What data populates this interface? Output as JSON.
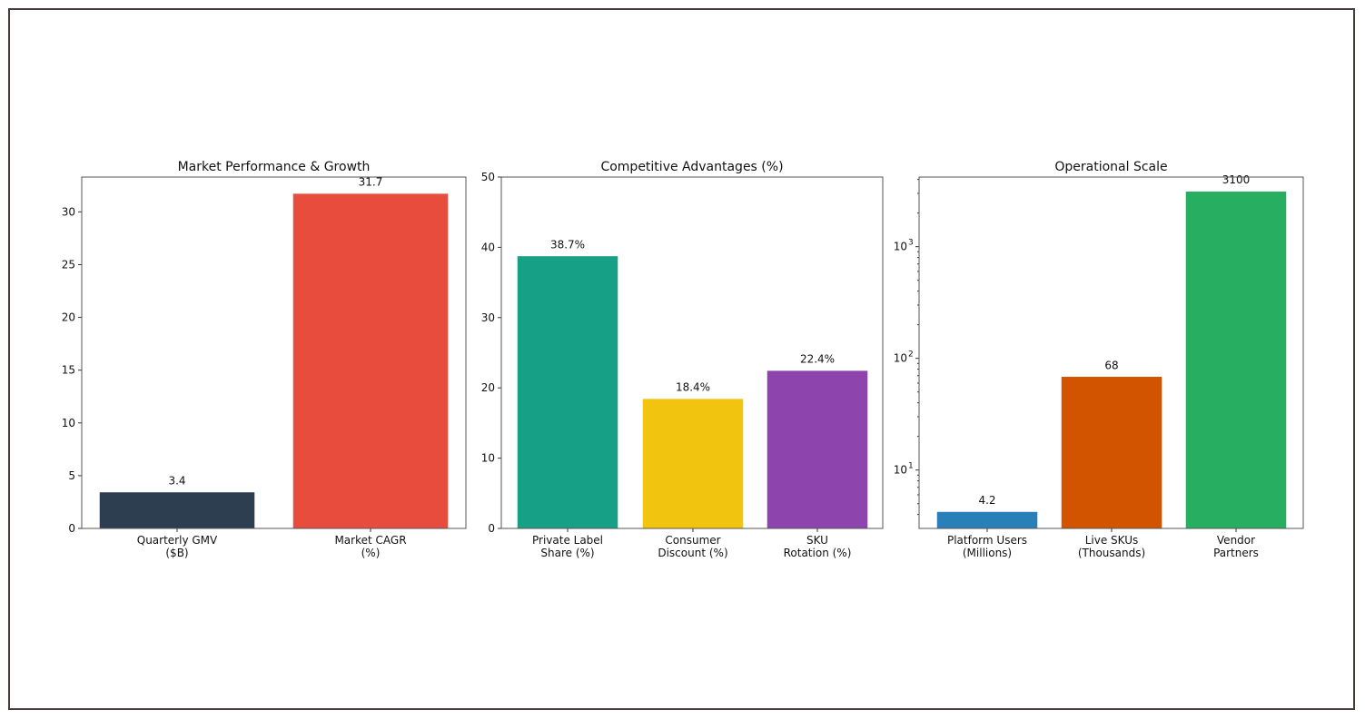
{
  "chart_data": [
    {
      "type": "bar",
      "title": "Market Performance & Growth",
      "scale": "linear",
      "categories": [
        "Quarterly GMV\n($B)",
        "Market CAGR\n(%)"
      ],
      "values": [
        3.4,
        31.7
      ],
      "value_labels": [
        "3.4",
        "31.7"
      ],
      "colors": [
        "#2c3e50",
        "#e74c3c"
      ],
      "ylim": [
        0,
        33.3
      ],
      "yticks": [
        0,
        5,
        10,
        15,
        20,
        25,
        30
      ],
      "ytick_labels": [
        "0",
        "5",
        "10",
        "15",
        "20",
        "25",
        "30"
      ],
      "xlabel": "",
      "ylabel": ""
    },
    {
      "type": "bar",
      "title": "Competitive Advantages (%)",
      "scale": "linear",
      "categories": [
        "Private Label\nShare (%)",
        "Consumer\nDiscount (%)",
        "SKU\nRotation (%)"
      ],
      "values": [
        38.7,
        18.4,
        22.4
      ],
      "value_labels": [
        "38.7%",
        "18.4%",
        "22.4%"
      ],
      "colors": [
        "#16a085",
        "#f1c40f",
        "#8e44ad"
      ],
      "ylim": [
        0,
        50
      ],
      "yticks": [
        0,
        10,
        20,
        30,
        40,
        50
      ],
      "ytick_labels": [
        "0",
        "10",
        "20",
        "30",
        "40",
        "50"
      ],
      "xlabel": "",
      "ylabel": ""
    },
    {
      "type": "bar",
      "title": "Operational Scale",
      "scale": "log",
      "categories": [
        "Platform Users\n(Millions)",
        "Live SKUs\n(Thousands)",
        "Vendor\nPartners"
      ],
      "values": [
        4.2,
        68,
        3100
      ],
      "value_labels": [
        "4.2",
        "68",
        "3100"
      ],
      "colors": [
        "#2980b9",
        "#d35400",
        "#27ae60"
      ],
      "ylim": [
        3.0,
        4200
      ],
      "yticks": [
        10,
        100,
        1000
      ],
      "ytick_labels": [
        "10",
        "10",
        "10"
      ],
      "ytick_exponents": [
        "1",
        "2",
        "3"
      ],
      "xlabel": "",
      "ylabel": ""
    }
  ]
}
